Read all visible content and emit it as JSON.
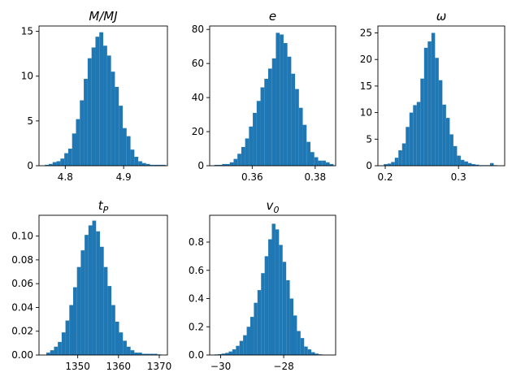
{
  "figure": {
    "bar_color": "#1f77b4",
    "axis_color": "#000000"
  },
  "chart_data": [
    {
      "type": "histogram",
      "title": "M/MJ",
      "xlim": [
        4.755,
        4.975
      ],
      "ylim": [
        0,
        15.6
      ],
      "xticks": [
        4.8,
        4.9
      ],
      "xtick_labels": [
        "4.8",
        "4.9"
      ],
      "yticks": [
        0,
        5,
        10,
        15
      ],
      "ytick_labels": [
        "0",
        "5",
        "10",
        "15"
      ],
      "bin_start": 4.765,
      "bin_width": 0.00667,
      "counts": [
        0.1,
        0.2,
        0.4,
        0.5,
        0.8,
        1.4,
        1.9,
        3.6,
        5.2,
        7.3,
        9.7,
        12.0,
        13.2,
        14.4,
        14.9,
        13.4,
        12.3,
        10.5,
        8.8,
        6.7,
        4.2,
        3.3,
        1.8,
        1.0,
        0.5,
        0.3,
        0.2,
        0.1,
        0.1,
        0.1,
        0.1
      ]
    },
    {
      "type": "histogram",
      "title": "e",
      "xlim": [
        0.3465,
        0.3865
      ],
      "ylim": [
        0,
        82
      ],
      "xticks": [
        0.36,
        0.38
      ],
      "xtick_labels": [
        "0.36",
        "0.38"
      ],
      "yticks": [
        0,
        20,
        40,
        60,
        80
      ],
      "ytick_labels": [
        "0",
        "20",
        "40",
        "60",
        "80"
      ],
      "bin_start": 0.348,
      "bin_width": 0.00122,
      "counts": [
        0.5,
        0.5,
        1,
        1,
        2,
        4,
        7,
        11,
        16,
        23,
        31,
        38,
        46,
        51,
        57,
        63,
        78,
        77,
        72,
        64,
        54,
        45,
        34,
        24,
        14,
        8,
        5,
        3,
        3,
        2,
        1
      ]
    },
    {
      "type": "histogram",
      "title": "ω",
      "xlim": [
        0.19,
        0.363
      ],
      "ylim": [
        0,
        26.3
      ],
      "xticks": [
        0.2,
        0.3
      ],
      "xtick_labels": [
        "0.2",
        "0.3"
      ],
      "yticks": [
        0,
        5,
        10,
        15,
        20,
        25
      ],
      "ytick_labels": [
        "0",
        "5",
        "10",
        "15",
        "20",
        "25"
      ],
      "bin_start": 0.198,
      "bin_width": 0.005,
      "counts": [
        0.3,
        0.4,
        0.7,
        1.5,
        2.9,
        4.2,
        7.3,
        10.0,
        11.4,
        12.0,
        16.4,
        22.2,
        23.4,
        25.0,
        20.3,
        16.1,
        11.5,
        9.0,
        5.9,
        3.7,
        1.9,
        1.1,
        0.8,
        0.5,
        0.3,
        0.2,
        0.1,
        0.1,
        0.1,
        0.5,
        0.1
      ]
    },
    {
      "type": "histogram",
      "title": "tP",
      "title_main": "t",
      "title_sub": "P",
      "xlim": [
        1340.5,
        1372
      ],
      "ylim": [
        0,
        0.1175
      ],
      "xticks": [
        1350,
        1360,
        1370
      ],
      "xtick_labels": [
        "1350",
        "1360",
        "1370"
      ],
      "yticks": [
        0,
        0.02,
        0.04,
        0.06,
        0.08,
        0.1
      ],
      "ytick_labels": [
        "0.00",
        "0.02",
        "0.04",
        "0.06",
        "0.08",
        "0.10"
      ],
      "bin_start": 1342.3,
      "bin_width": 0.939,
      "counts": [
        0.002,
        0.004,
        0.007,
        0.011,
        0.019,
        0.029,
        0.042,
        0.057,
        0.074,
        0.088,
        0.101,
        0.109,
        0.113,
        0.104,
        0.091,
        0.074,
        0.058,
        0.042,
        0.028,
        0.019,
        0.012,
        0.007,
        0.004,
        0.002,
        0.002,
        0.001,
        0.001,
        0.001,
        0.001,
        0.0005
      ]
    },
    {
      "type": "histogram",
      "title": "v0",
      "title_main": "v",
      "title_sub": "0",
      "xlim": [
        -30.35,
        -26.35
      ],
      "ylim": [
        0,
        0.99
      ],
      "xticks": [
        -30,
        -28
      ],
      "xtick_labels": [
        "−30",
        "−28"
      ],
      "yticks": [
        0,
        0.2,
        0.4,
        0.6,
        0.8
      ],
      "ytick_labels": [
        "0.0",
        "0.2",
        "0.4",
        "0.6",
        "0.8"
      ],
      "bin_start": -30.2,
      "bin_width": 0.114,
      "counts": [
        0.004,
        0.006,
        0.01,
        0.015,
        0.025,
        0.04,
        0.065,
        0.1,
        0.14,
        0.2,
        0.27,
        0.37,
        0.46,
        0.58,
        0.7,
        0.82,
        0.93,
        0.89,
        0.78,
        0.66,
        0.53,
        0.4,
        0.28,
        0.17,
        0.12,
        0.06,
        0.04,
        0.02,
        0.01,
        0.005,
        0.002
      ]
    }
  ]
}
